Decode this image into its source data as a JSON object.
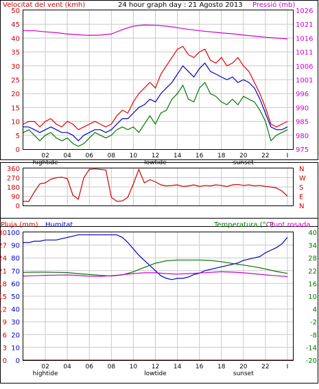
{
  "colors": {
    "wind": "#e00000",
    "gust": "#e00000",
    "avgwind": "#0000c0",
    "avg": "#0000c0",
    "pressure": "#cc00cc",
    "direction": "#cc0000",
    "rain": "#cc0000",
    "humidity": "#0000c0",
    "temperature": "#007700",
    "dewpoint": "#cc00cc",
    "grid": "#c8c8c8",
    "axis_left_red": "#cc0000",
    "axis_blue": "#0000cc",
    "axis_green": "#007700",
    "axis_magenta": "#cc00cc"
  },
  "chart_data": [
    {
      "type": "line",
      "title": "24 hour graph day : 21 Agosto 2013",
      "ylabel_left": "Velocitat del vent (kmh)",
      "ylabel_right": "Pressió (mb)",
      "ylim_left": [
        0,
        50
      ],
      "ylim_right": [
        975,
        1026
      ],
      "yticks_left": [
        "0",
        "5",
        "10",
        "15",
        "20",
        "25",
        "30",
        "35",
        "40",
        "45",
        "50"
      ],
      "yticks_right": [
        "975",
        "980",
        "985",
        "990",
        "996",
        "1001",
        "1006",
        "1011",
        "1016",
        "1021",
        "1026"
      ],
      "xticks": [
        {
          "hour": 2,
          "label": "02",
          "sublabel": "hightide"
        },
        {
          "hour": 4,
          "label": "04",
          "sublabel": ""
        },
        {
          "hour": 6,
          "label": "06",
          "sublabel": ""
        },
        {
          "hour": 8,
          "label": "08",
          "sublabel": ""
        },
        {
          "hour": 10,
          "label": "10",
          "sublabel": ""
        },
        {
          "hour": 12,
          "label": "12",
          "sublabel": "lowtide"
        },
        {
          "hour": 14,
          "label": "14",
          "sublabel": ""
        },
        {
          "hour": 16,
          "label": "16",
          "sublabel": ""
        },
        {
          "hour": 18,
          "label": "18",
          "sublabel": ""
        },
        {
          "hour": 20,
          "label": "20",
          "sublabel": "sunset"
        },
        {
          "hour": 22,
          "label": "22",
          "sublabel": ""
        },
        {
          "hour": 24,
          "label": "I",
          "sublabel": ""
        }
      ],
      "x_range_hours": [
        0,
        24.5
      ],
      "grid": true,
      "series": [
        {
          "key": "gust",
          "color": "wind",
          "x": [
            0,
            0.5,
            1,
            1.5,
            2,
            2.5,
            3,
            3.5,
            4,
            4.5,
            5,
            5.5,
            6,
            6.5,
            7,
            7.5,
            8,
            8.5,
            9,
            9.5,
            10,
            10.5,
            11,
            11.5,
            12,
            12.5,
            13,
            13.5,
            14,
            14.5,
            15,
            15.5,
            16,
            16.5,
            17,
            17.5,
            18,
            18.5,
            19,
            19.5,
            20,
            20.5,
            21,
            21.5,
            22,
            22.5,
            23,
            23.5,
            24
          ],
          "y": [
            9,
            10,
            10,
            8,
            10,
            11,
            9,
            8,
            10,
            9,
            7,
            8,
            9,
            10,
            9,
            8,
            9,
            12,
            14,
            13,
            17,
            20,
            22,
            24,
            22,
            27,
            30,
            33,
            36,
            37,
            34,
            33,
            35,
            36,
            32,
            31,
            33,
            30,
            31,
            33,
            30,
            28,
            24,
            20,
            15,
            9,
            8,
            9,
            10
          ]
        },
        {
          "key": "avgwind",
          "color": "avgwind",
          "x": [
            0,
            0.5,
            1,
            1.5,
            2,
            2.5,
            3,
            3.5,
            4,
            4.5,
            5,
            5.5,
            6,
            6.5,
            7,
            7.5,
            8,
            8.5,
            9,
            9.5,
            10,
            10.5,
            11,
            11.5,
            12,
            12.5,
            13,
            13.5,
            14,
            14.5,
            15,
            15.5,
            16,
            16.5,
            17,
            17.5,
            18,
            18.5,
            19,
            19.5,
            20,
            20.5,
            21,
            21.5,
            22,
            22.5,
            23,
            23.5,
            24
          ],
          "y": [
            8,
            8,
            7,
            6,
            7,
            8,
            7,
            6,
            6,
            5,
            3,
            5,
            6,
            7,
            7,
            6,
            7,
            9,
            11,
            11,
            13,
            15,
            16,
            18,
            17,
            20,
            22,
            24,
            27,
            30,
            28,
            26,
            29,
            31,
            28,
            27,
            26,
            25,
            26,
            24,
            25,
            24,
            22,
            18,
            13,
            8,
            7,
            7,
            8
          ]
        },
        {
          "key": "avg",
          "color": "temperature",
          "x": [
            0,
            0.5,
            1,
            1.5,
            2,
            2.5,
            3,
            3.5,
            4,
            4.5,
            5,
            5.5,
            6,
            6.5,
            7,
            7.5,
            8,
            8.5,
            9,
            9.5,
            10,
            10.5,
            11,
            11.5,
            12,
            12.5,
            13,
            13.5,
            14,
            14.5,
            15,
            15.5,
            16,
            16.5,
            17,
            17.5,
            18,
            18.5,
            19,
            19.5,
            20,
            20.5,
            21,
            21.5,
            22,
            22.5,
            23,
            23.5,
            24
          ],
          "y": [
            6,
            7,
            5,
            3,
            5,
            6,
            4,
            3,
            4,
            2,
            1,
            2,
            4,
            6,
            5,
            4,
            5,
            7,
            8,
            7,
            8,
            6,
            9,
            12,
            9,
            13,
            14,
            18,
            20,
            23,
            18,
            17,
            22,
            24,
            20,
            19,
            17,
            16,
            18,
            16,
            19,
            18,
            17,
            14,
            10,
            3,
            5,
            6,
            7
          ]
        },
        {
          "key": "pressure",
          "color": "pressure",
          "x": [
            0,
            1,
            2,
            3,
            4,
            5,
            6,
            7,
            8,
            9,
            10,
            11,
            12,
            13,
            14,
            15,
            16,
            17,
            18,
            19,
            20,
            21,
            22,
            23,
            24
          ],
          "y": [
            1018.5,
            1018.5,
            1018.1,
            1017.8,
            1017.3,
            1017,
            1016.8,
            1016.9,
            1017.3,
            1018.9,
            1020.2,
            1020.6,
            1020.5,
            1020.2,
            1019.6,
            1019,
            1018.5,
            1018.1,
            1017.7,
            1017.4,
            1016.9,
            1016.5,
            1016.1,
            1015.8,
            1015.5
          ]
        }
      ]
    },
    {
      "type": "line",
      "ylabel_right_letters": [
        "N",
        "W",
        "S",
        "E",
        "N"
      ],
      "ylim": [
        0,
        360
      ],
      "yticks": [
        "0",
        "90",
        "180",
        "270",
        "360"
      ],
      "grid": true,
      "series": [
        {
          "key": "direction",
          "color": "direction",
          "x": [
            0,
            0.5,
            1,
            1.5,
            2,
            2.5,
            3,
            3.5,
            4,
            4.5,
            5,
            5.5,
            6,
            6.5,
            7,
            7.5,
            8,
            8.5,
            9,
            9.5,
            10,
            10.5,
            11,
            11.5,
            12,
            12.5,
            13,
            13.5,
            14,
            14.5,
            15,
            15.5,
            16,
            16.5,
            17,
            17.5,
            18,
            18.5,
            19,
            19.5,
            20,
            20.5,
            21,
            21.5,
            22,
            22.5,
            23,
            23.5,
            24
          ],
          "y": [
            40,
            40,
            130,
            210,
            220,
            255,
            270,
            275,
            260,
            100,
            60,
            270,
            350,
            355,
            350,
            345,
            80,
            40,
            45,
            80,
            210,
            350,
            220,
            250,
            230,
            200,
            190,
            195,
            200,
            185,
            190,
            200,
            185,
            195,
            190,
            200,
            195,
            185,
            200,
            205,
            195,
            200,
            190,
            195,
            185,
            180,
            170,
            140,
            90
          ]
        }
      ]
    },
    {
      "type": "line",
      "ylabel_left_a": "Pluja (mm)",
      "ylabel_left_b": "Humitat",
      "ylabel_right_a": "Temperatura (°C)",
      "ylabel_right_b": "Punt rosada",
      "ylim_rain": [
        0,
        30
      ],
      "ylim_humidity": [
        0,
        100
      ],
      "ylim_temp": [
        -20,
        40
      ],
      "yticks_rain": [
        "0",
        "3",
        "6",
        "9",
        "12",
        "15",
        "18",
        "21",
        "24",
        "27",
        "30"
      ],
      "yticks_humidity": [
        "0",
        "10",
        "20",
        "30",
        "40",
        "50",
        "60",
        "70",
        "80",
        "90",
        "100"
      ],
      "yticks_temp": [
        "-20",
        "-14",
        "-8",
        "-2",
        "4",
        "10",
        "16",
        "22",
        "28",
        "34",
        "40"
      ],
      "grid": true,
      "series": [
        {
          "key": "humidity",
          "color": "humidity",
          "axis": "humidity",
          "x": [
            0,
            0.5,
            1,
            1.5,
            2,
            2.5,
            3,
            3.5,
            4,
            4.5,
            5,
            5.5,
            6,
            6.5,
            7,
            7.5,
            8,
            8.5,
            9,
            9.5,
            10,
            10.5,
            11,
            11.5,
            12,
            12.5,
            13,
            13.5,
            14,
            14.5,
            15,
            15.5,
            16,
            16.5,
            17,
            17.5,
            18,
            18.5,
            19,
            19.5,
            20,
            20.5,
            21,
            21.5,
            22,
            22.5,
            23,
            23.5,
            24
          ],
          "y": [
            92,
            92,
            93,
            93,
            94,
            94,
            94,
            95,
            96,
            97,
            98,
            98,
            98,
            98,
            98,
            98,
            98,
            98,
            96,
            92,
            87,
            82,
            78,
            74,
            70,
            66,
            64,
            63,
            64,
            64,
            65,
            67,
            68,
            70,
            71,
            72,
            73,
            74,
            75,
            76,
            78,
            79,
            80,
            81,
            84,
            86,
            88,
            91,
            96
          ]
        },
        {
          "key": "temperature",
          "color": "temperature",
          "axis": "temp",
          "x": [
            0,
            1,
            2,
            3,
            4,
            5,
            6,
            7,
            8,
            9,
            10,
            11,
            12,
            13,
            14,
            15,
            16,
            17,
            18,
            19,
            20,
            21,
            22,
            23,
            24
          ],
          "y": [
            21.2,
            21.3,
            21.3,
            21.2,
            21.1,
            20.6,
            20.2,
            19.8,
            19.5,
            20,
            21.5,
            23.5,
            25.5,
            26.6,
            27,
            27,
            27,
            26.8,
            26.2,
            25.4,
            24.6,
            23.8,
            22.8,
            21.6,
            20.7
          ]
        },
        {
          "key": "dewpoint",
          "color": "dewpoint",
          "axis": "temp",
          "x": [
            0,
            1,
            2,
            3,
            4,
            5,
            6,
            7,
            8,
            9,
            10,
            11,
            12,
            13,
            14,
            15,
            16,
            17,
            18,
            19,
            20,
            21,
            22,
            23,
            24
          ],
          "y": [
            19.5,
            19.6,
            19.8,
            19.9,
            20,
            19.7,
            19.4,
            19.3,
            19.6,
            20.1,
            20.6,
            21,
            21,
            20.6,
            20.4,
            20.6,
            20.9,
            21.2,
            21.5,
            21.3,
            21,
            20.5,
            20,
            19.6,
            19.2
          ]
        },
        {
          "key": "rain",
          "color": "rain",
          "axis": "rain",
          "x": [
            0,
            24.5
          ],
          "y": [
            0,
            0
          ]
        }
      ]
    }
  ]
}
